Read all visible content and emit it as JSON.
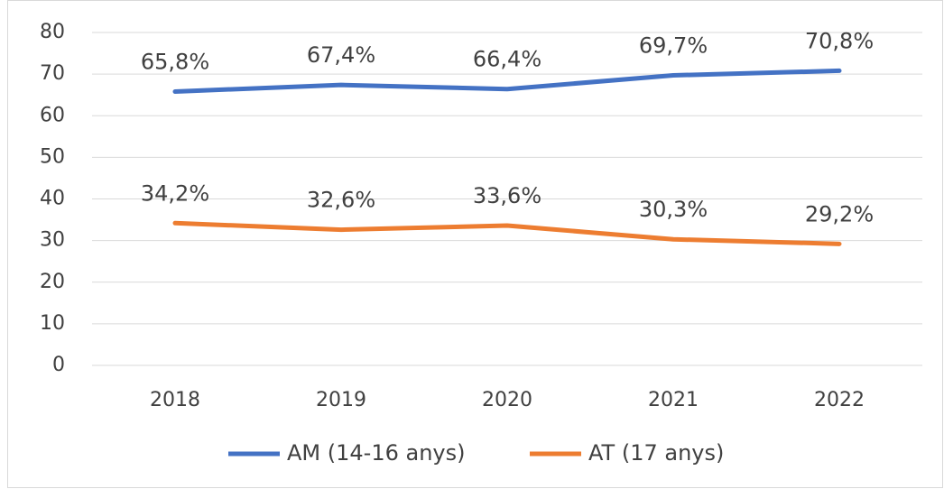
{
  "chart_data": {
    "type": "line",
    "categories": [
      "2018",
      "2019",
      "2020",
      "2021",
      "2022"
    ],
    "series": [
      {
        "name": "AM (14-16 anys)",
        "color": "#4472c4",
        "values": [
          65.8,
          67.4,
          66.4,
          69.7,
          70.8
        ],
        "value_labels": [
          "65,8%",
          "67,4%",
          "66,4%",
          "69,7%",
          "70,8%"
        ]
      },
      {
        "name": "AT (17 anys)",
        "color": "#ed7d31",
        "values": [
          34.2,
          32.6,
          33.6,
          30.3,
          29.2
        ],
        "value_labels": [
          "34,2%",
          "32,6%",
          "33,6%",
          "30,3%",
          "29,2%"
        ]
      }
    ],
    "ylim": [
      0,
      80
    ],
    "yticks": [
      0,
      10,
      20,
      30,
      40,
      50,
      60,
      70,
      80
    ],
    "grid": true,
    "legend": "bottom"
  }
}
